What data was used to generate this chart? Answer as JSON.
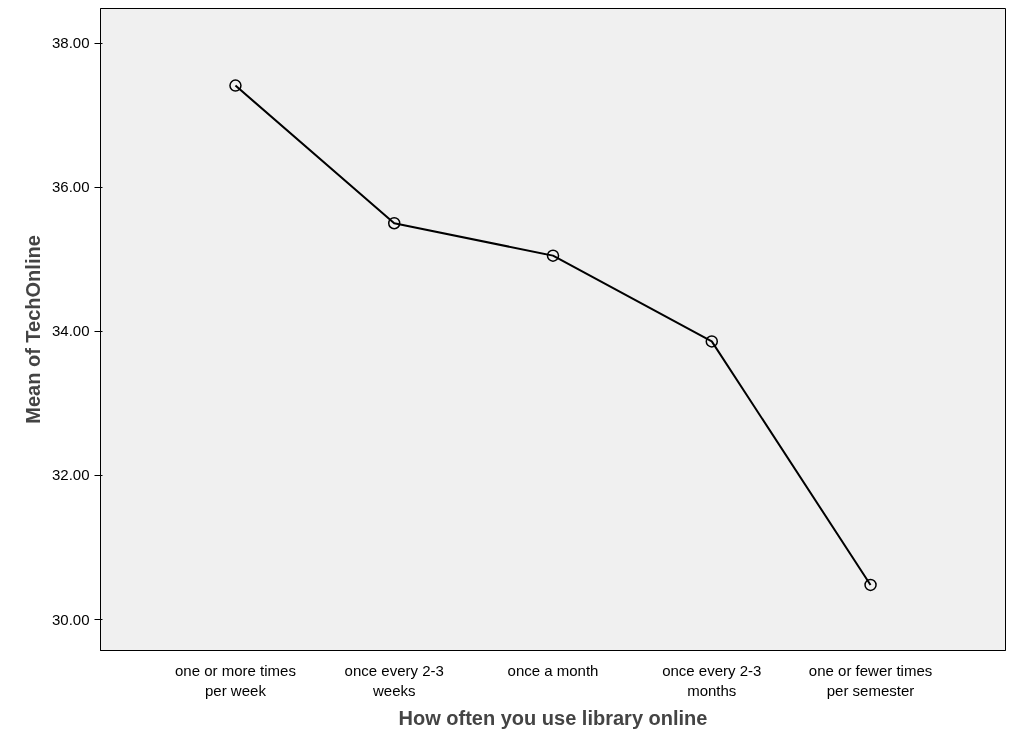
{
  "chart_data": {
    "type": "line",
    "xlabel": "How often you use library online",
    "ylabel": "Mean of TechOnline",
    "categories": [
      "one or more times\nper week",
      "once every 2-3\nweeks",
      "once a month",
      "once every 2-3\nmonths",
      "one or fewer times\nper semester"
    ],
    "series": [
      {
        "color": "#000000",
        "values": [
          37.41,
          35.5,
          35.05,
          33.86,
          30.48
        ]
      }
    ],
    "ylim": [
      29.57,
      38.48
    ],
    "yticks": [
      {
        "value": 30,
        "label": "30.00"
      },
      {
        "value": 32,
        "label": "32.00"
      },
      {
        "value": 34,
        "label": "34.00"
      },
      {
        "value": 36,
        "label": "36.00"
      },
      {
        "value": 38,
        "label": "38.00"
      }
    ],
    "grid": false,
    "marker": "circle",
    "line_style": "solid"
  }
}
